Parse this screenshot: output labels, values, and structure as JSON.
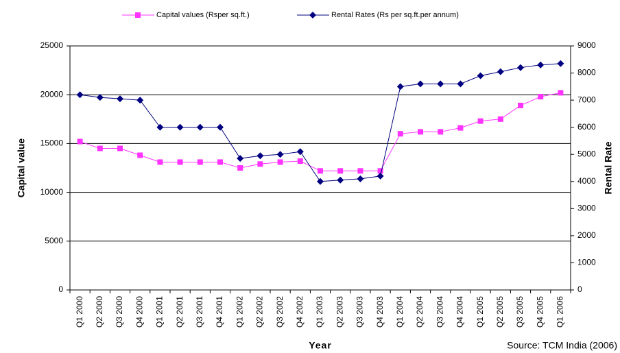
{
  "chart_data": {
    "type": "line",
    "categories": [
      "Q1 2000",
      "Q2 2000",
      "Q3 2000",
      "Q4 2000",
      "Q1 2001",
      "Q2 2001",
      "Q3 2001",
      "Q4 2001",
      "Q1 2002",
      "Q2 2002",
      "Q3 2002",
      "Q4 2002",
      "Q1 2003",
      "Q2 2003",
      "Q3 2003",
      "Q4 2003",
      "Q1 2004",
      "Q2 2004",
      "Q3 2004",
      "Q4 2004",
      "Q1 2005",
      "Q2 2005",
      "Q3 2005",
      "Q4 2005",
      "Q1 2006"
    ],
    "series": [
      {
        "name": "Capital values (Rsper sq.ft.)",
        "color": "#ff33ff",
        "marker": "square",
        "values": [
          15200,
          14500,
          14500,
          13800,
          13100,
          13100,
          13100,
          13100,
          12500,
          12900,
          13100,
          13200,
          12200,
          12200,
          12200,
          12200,
          16000,
          16200,
          16200,
          16600,
          17300,
          17500,
          18900,
          19800,
          20200
        ]
      },
      {
        "name": "Rental Rates (Rs per sq.ft.per annum)",
        "color": "#000080",
        "marker": "diamond",
        "axis": "y2",
        "values": [
          7200,
          7100,
          7050,
          7000,
          6000,
          6000,
          6000,
          6000,
          4850,
          4950,
          5000,
          5100,
          4000,
          4050,
          4100,
          4200,
          7500,
          7600,
          7600,
          7600,
          7900,
          8050,
          8200,
          8300,
          8350
        ]
      }
    ],
    "xlabel": "Year",
    "ylabel": "Capital value",
    "y2label": "Rental Rate",
    "ylim": [
      0,
      25000
    ],
    "yticks": [
      0,
      5000,
      10000,
      15000,
      20000,
      25000
    ],
    "y2lim": [
      0,
      9000
    ],
    "y2ticks": [
      0,
      1000,
      2000,
      3000,
      4000,
      5000,
      6000,
      7000,
      8000,
      9000
    ],
    "grid": true,
    "legend": "top",
    "source": "Source:  TCM India (2006)"
  }
}
